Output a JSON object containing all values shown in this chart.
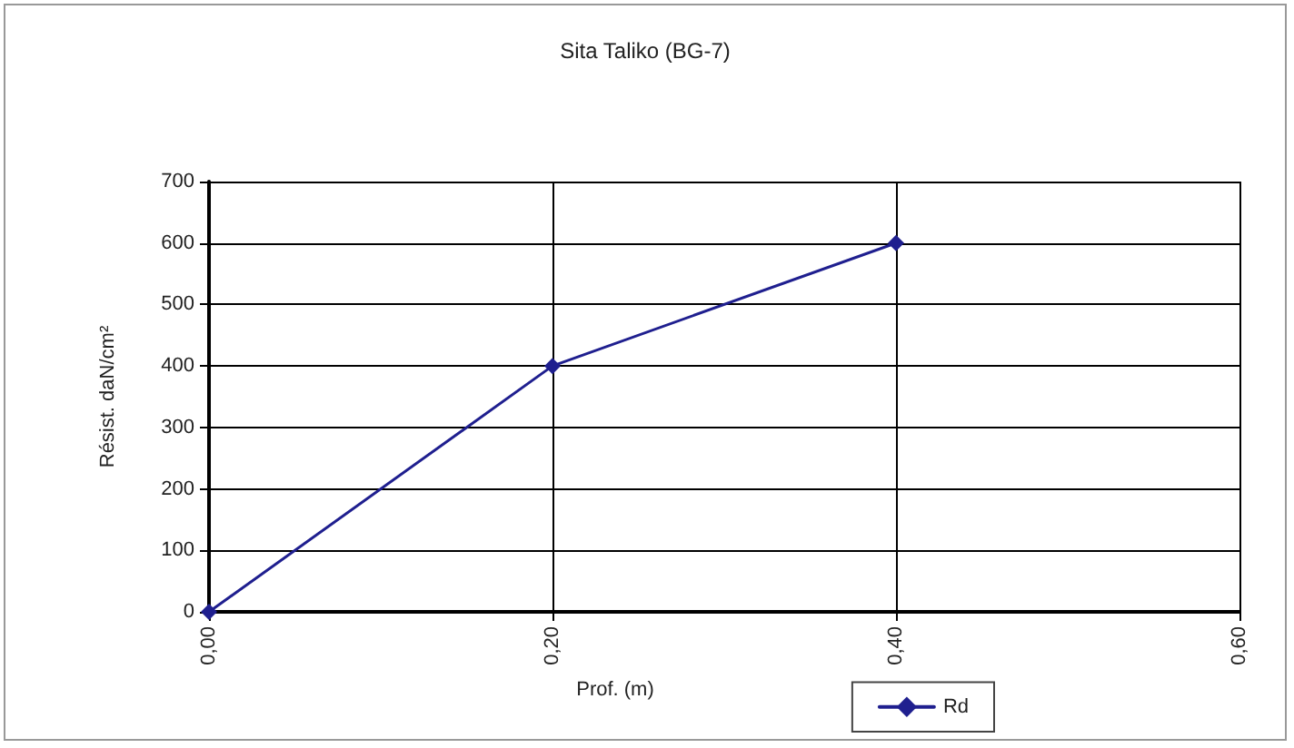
{
  "chart_data": {
    "type": "line",
    "title": "Sita Taliko (BG-7)",
    "xlabel": "Prof. (m)",
    "ylabel": "Résist. daN/cm²",
    "x": [
      0,
      0.2,
      0.4
    ],
    "series": [
      {
        "name": "Rd",
        "color": "#1f1f8f",
        "values": [
          0,
          400,
          600
        ]
      }
    ],
    "xlim": [
      0,
      0.6
    ],
    "xticks": [
      {
        "value": 0,
        "label": "0,00"
      },
      {
        "value": 0.2,
        "label": "0,20"
      },
      {
        "value": 0.4,
        "label": "0,40"
      },
      {
        "value": 0.6,
        "label": "0,60"
      }
    ],
    "ylim": [
      0,
      700
    ],
    "yticks": [
      0,
      100,
      200,
      300,
      400,
      500,
      600,
      700
    ],
    "grid": true,
    "legend": "bottom right",
    "marker": "diamond",
    "line_style": "solid"
  }
}
